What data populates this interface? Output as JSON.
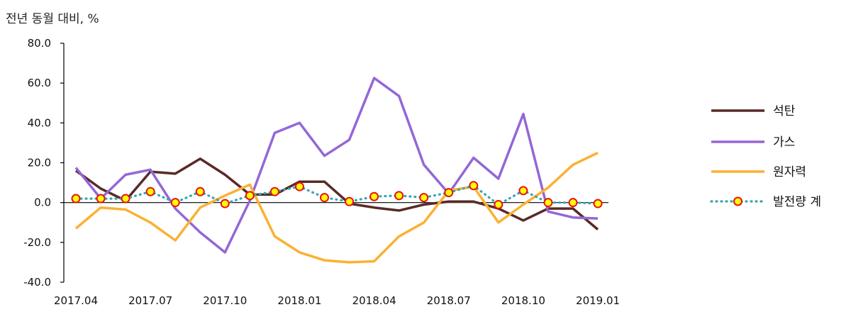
{
  "chart_data": {
    "type": "line",
    "ylabel": "전년 동월 대비, %",
    "ylim": [
      -40,
      80
    ],
    "yticks": [
      "80.0",
      "60.0",
      "40.0",
      "20.0",
      "0.0",
      "-20.0",
      "-40.0"
    ],
    "ytick_values": [
      80,
      60,
      40,
      20,
      0,
      -20,
      -40
    ],
    "x": [
      "2017.04",
      "2017.05",
      "2017.06",
      "2017.07",
      "2017.08",
      "2017.09",
      "2017.10",
      "2017.11",
      "2017.12",
      "2018.01",
      "2018.02",
      "2018.03",
      "2018.04",
      "2018.05",
      "2018.06",
      "2018.07",
      "2018.08",
      "2018.09",
      "2018.10",
      "2018.11",
      "2018.12",
      "2019.01"
    ],
    "xtick_labels": [
      "2017.04",
      "2017.07",
      "2017.10",
      "2018.01",
      "2018.04",
      "2018.07",
      "2018.10",
      "2019.01"
    ],
    "legend_position": "right",
    "series": [
      {
        "name": "석탄",
        "color": "#582a27",
        "style": "solid",
        "values": [
          16,
          7,
          1,
          15.5,
          14.5,
          22,
          14,
          4,
          4,
          10.5,
          10.5,
          -0.5,
          -2.5,
          -4,
          -1,
          0.5,
          0.5,
          -3,
          -9,
          -3,
          -3,
          -13.5
        ]
      },
      {
        "name": "가스",
        "color": "#9467d6",
        "style": "solid",
        "values": [
          17.5,
          2,
          14,
          16.5,
          -3,
          -15,
          -25,
          1,
          35,
          40,
          23.5,
          31.5,
          62.5,
          53.5,
          19,
          4.5,
          22.5,
          12,
          44.5,
          -4.5,
          -7.5,
          -8
        ]
      },
      {
        "name": "원자력",
        "color": "#fbb132",
        "style": "solid",
        "values": [
          -13,
          -2.5,
          -3.5,
          -10,
          -19,
          -2.5,
          3.5,
          9,
          -17,
          -25,
          -29,
          -30,
          -29.5,
          -17,
          -10,
          6,
          8,
          -10,
          -1,
          7.5,
          19,
          25
        ]
      },
      {
        "name": "발전량 계",
        "color": "#3aa4b0",
        "style": "dotted",
        "marker_fill": "#ffff00",
        "marker_edge": "#e8101a",
        "values": [
          2,
          2,
          2,
          5.5,
          0,
          5.5,
          -0.5,
          3.5,
          5.5,
          8,
          2.5,
          0.5,
          3,
          3.5,
          2.5,
          5,
          8.5,
          -1,
          6,
          0,
          0,
          -0.5
        ]
      }
    ]
  }
}
